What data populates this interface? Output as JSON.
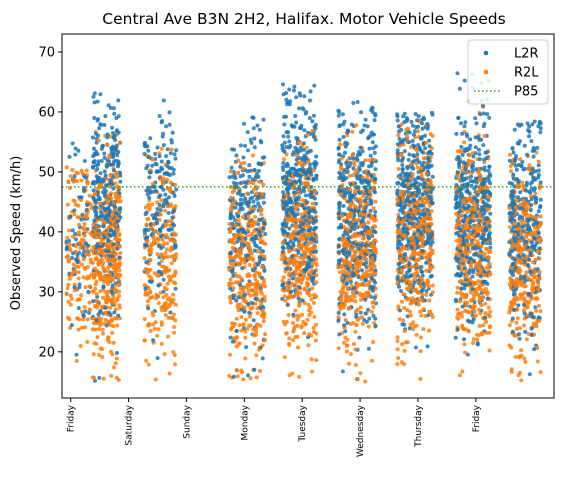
{
  "chart_data": {
    "type": "scatter",
    "title": "Central Ave B3N 2H2, Halifax. Motor Vehicle Speeds",
    "xlabel": "",
    "ylabel": "Observed Speed (km/h)",
    "xlim": [
      -0.15,
      8.35
    ],
    "ylim": [
      12.3,
      73
    ],
    "yticks": [
      20,
      30,
      40,
      50,
      60,
      70
    ],
    "xticks": [
      {
        "label": "Friday",
        "x": 0
      },
      {
        "label": "Saturday",
        "x": 1
      },
      {
        "label": "Sunday",
        "x": 2
      },
      {
        "label": "Monday",
        "x": 3
      },
      {
        "label": "Tuesday",
        "x": 4
      },
      {
        "label": "Wednesday",
        "x": 5
      },
      {
        "label": "Thursday",
        "x": 6
      },
      {
        "label": "Friday",
        "x": 7
      }
    ],
    "legend_position": "top-right",
    "series": [
      {
        "name": "L2R",
        "color": "#1f77b4",
        "marker": "dot"
      },
      {
        "name": "R2L",
        "color": "#ff7f0e",
        "marker": "dot"
      }
    ],
    "reference_lines": [
      {
        "name": "P85",
        "y": 47.5,
        "color": "#2ca02c",
        "style": "dotted"
      }
    ],
    "clusters": [
      {
        "center": 0.15,
        "width": 0.45,
        "L2R_count": 70,
        "R2L_count": 150,
        "L2R_mean": 40,
        "R2L_mean": 36,
        "L2R_max": 55,
        "R2L_max": 51
      },
      {
        "center": 0.62,
        "width": 0.48,
        "L2R_count": 320,
        "R2L_count": 380,
        "L2R_mean": 44,
        "R2L_mean": 35,
        "L2R_max": 63.5,
        "R2L_max": 57
      },
      {
        "center": 1.55,
        "width": 0.55,
        "L2R_count": 190,
        "R2L_count": 230,
        "L2R_mean": 43,
        "R2L_mean": 35,
        "L2R_max": 62.5,
        "R2L_max": 54
      },
      {
        "center": 3.05,
        "width": 0.62,
        "L2R_count": 260,
        "R2L_count": 330,
        "L2R_mean": 41,
        "R2L_mean": 34,
        "L2R_max": 59.5,
        "R2L_max": 53
      },
      {
        "center": 3.95,
        "width": 0.6,
        "L2R_count": 420,
        "R2L_count": 360,
        "L2R_mean": 45,
        "R2L_mean": 37,
        "L2R_max": 65,
        "R2L_max": 57
      },
      {
        "center": 4.95,
        "width": 0.65,
        "L2R_count": 430,
        "R2L_count": 380,
        "L2R_mean": 42,
        "R2L_mean": 37,
        "L2R_max": 62,
        "R2L_max": 58
      },
      {
        "center": 5.95,
        "width": 0.62,
        "L2R_count": 470,
        "R2L_count": 420,
        "L2R_mean": 44,
        "R2L_mean": 38,
        "L2R_max": 60,
        "R2L_max": 58.5
      },
      {
        "center": 6.95,
        "width": 0.6,
        "L2R_count": 420,
        "R2L_count": 380,
        "L2R_mean": 43,
        "R2L_mean": 37,
        "L2R_max": 70,
        "R2L_max": 62.5
      },
      {
        "center": 7.85,
        "width": 0.55,
        "L2R_count": 310,
        "R2L_count": 330,
        "L2R_mean": 41,
        "R2L_mean": 35,
        "L2R_max": 58.5,
        "R2L_max": 53.5
      }
    ],
    "speed_min": 15,
    "grid": false
  }
}
